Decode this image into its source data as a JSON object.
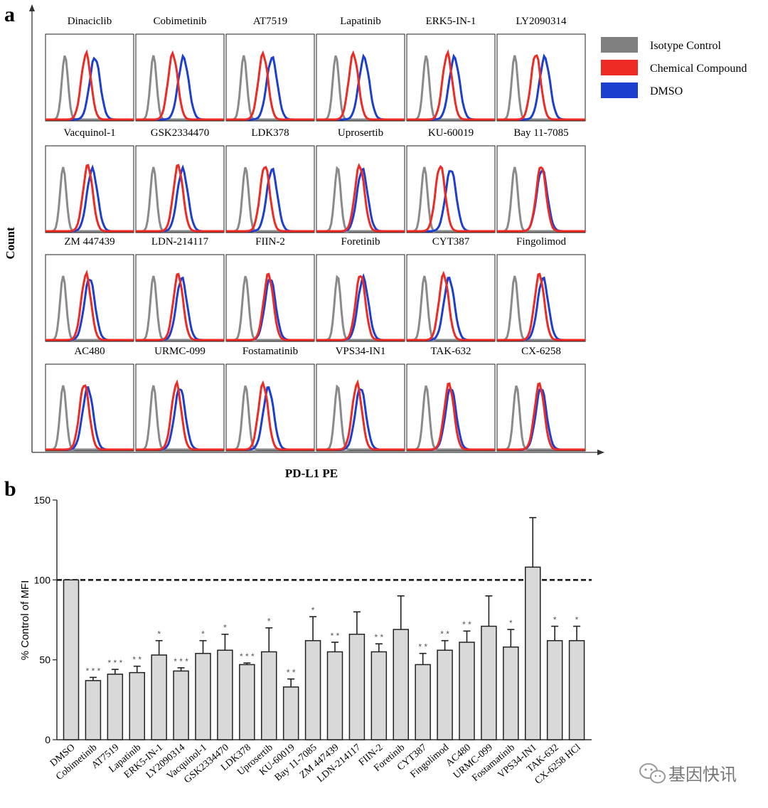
{
  "panel_a": {
    "letter": "a",
    "ylabel": "Count",
    "xlabel": "PD-L1 PE",
    "legend": [
      {
        "label": "Isotype Control",
        "color": "#808080"
      },
      {
        "label": "Chemical Compound",
        "color": "#ee2a24"
      },
      {
        "label": "DMSO",
        "color": "#1c3fd0"
      }
    ],
    "histograms": [
      {
        "name": "Dinaciclib",
        "iso": 0.22,
        "cmp": 0.46,
        "dmso": 0.56
      },
      {
        "name": "Cobimetinib",
        "iso": 0.2,
        "cmp": 0.42,
        "dmso": 0.54
      },
      {
        "name": "AT7519",
        "iso": 0.2,
        "cmp": 0.42,
        "dmso": 0.52
      },
      {
        "name": "Lapatinib",
        "iso": 0.22,
        "cmp": 0.42,
        "dmso": 0.54
      },
      {
        "name": "ERK5-IN-1",
        "iso": 0.22,
        "cmp": 0.46,
        "dmso": 0.54
      },
      {
        "name": "LY2090314",
        "iso": 0.2,
        "cmp": 0.44,
        "dmso": 0.54
      },
      {
        "name": "Vacquinol-1",
        "iso": 0.2,
        "cmp": 0.48,
        "dmso": 0.53
      },
      {
        "name": "GSK2334470",
        "iso": 0.2,
        "cmp": 0.48,
        "dmso": 0.53
      },
      {
        "name": "LDK378",
        "iso": 0.22,
        "cmp": 0.44,
        "dmso": 0.52
      },
      {
        "name": "Uprosertib",
        "iso": 0.24,
        "cmp": 0.49,
        "dmso": 0.52
      },
      {
        "name": "KU-60019",
        "iso": 0.2,
        "cmp": 0.38,
        "dmso": 0.5
      },
      {
        "name": "Bay 11-7085",
        "iso": 0.2,
        "cmp": 0.5,
        "dmso": 0.51
      },
      {
        "name": "ZM 447439",
        "iso": 0.2,
        "cmp": 0.46,
        "dmso": 0.5
      },
      {
        "name": "LDN-214117",
        "iso": 0.2,
        "cmp": 0.48,
        "dmso": 0.52
      },
      {
        "name": "FIIN-2",
        "iso": 0.22,
        "cmp": 0.48,
        "dmso": 0.5
      },
      {
        "name": "Foretinib",
        "iso": 0.24,
        "cmp": 0.5,
        "dmso": 0.53
      },
      {
        "name": "CYT387",
        "iso": 0.2,
        "cmp": 0.42,
        "dmso": 0.48
      },
      {
        "name": "Fingolimod",
        "iso": 0.2,
        "cmp": 0.48,
        "dmso": 0.52
      },
      {
        "name": "AC480",
        "iso": 0.2,
        "cmp": 0.44,
        "dmso": 0.48
      },
      {
        "name": "URMC-099",
        "iso": 0.2,
        "cmp": 0.46,
        "dmso": 0.5
      },
      {
        "name": "Fostamatinib",
        "iso": 0.22,
        "cmp": 0.42,
        "dmso": 0.48
      },
      {
        "name": "VPS34-IN1",
        "iso": 0.24,
        "cmp": 0.46,
        "dmso": 0.5
      },
      {
        "name": "TAK-632",
        "iso": 0.22,
        "cmp": 0.48,
        "dmso": 0.5
      },
      {
        "name": "CX-6258",
        "iso": 0.22,
        "cmp": 0.48,
        "dmso": 0.5
      }
    ]
  },
  "chart_data": {
    "type": "bar",
    "letter": "b",
    "title": "",
    "xlabel": "",
    "ylabel": "% Control of  MFI",
    "ylim": [
      0,
      150
    ],
    "yticks": [
      "0",
      "50",
      "100",
      "150"
    ],
    "reference_line": 100,
    "categories": [
      "DMSO",
      "Cobimetinib",
      "AT7519",
      "Lapatinib",
      "ERK5-IN-1",
      "LY2090314",
      "Vacquinol-1",
      "GSK2334470",
      "LDK378",
      "Uprosertib",
      "KU-60019",
      "Bay 11-7085",
      "ZM 447439",
      "LDN-214117",
      "FIIN-2",
      "Foretinib",
      "CYT387",
      "Fingolimod",
      "AC480",
      "URMC-099",
      "Fostamatinib",
      "VPS34-IN1",
      "TAK-632",
      "CX-6258 HCl"
    ],
    "values": [
      100,
      37,
      41,
      42,
      53,
      43,
      54,
      56,
      47,
      55,
      33,
      62,
      55,
      66,
      55,
      69,
      47,
      56,
      61,
      71,
      58,
      108,
      62,
      62
    ],
    "errors": [
      0,
      2,
      3,
      4,
      9,
      2,
      8,
      10,
      1,
      15,
      5,
      15,
      6,
      14,
      5,
      21,
      7,
      6,
      7,
      19,
      11,
      31,
      9,
      9
    ],
    "significance": [
      "",
      "* * *",
      "* * *",
      "* *",
      "*",
      "* * *",
      "*",
      "*",
      "* * *",
      "*",
      "* *",
      "*",
      "* *",
      "",
      "* *",
      "",
      "* *",
      "* *",
      "* *",
      "",
      "*",
      "",
      "*",
      "*"
    ]
  },
  "watermark": {
    "text": "基因快讯"
  }
}
